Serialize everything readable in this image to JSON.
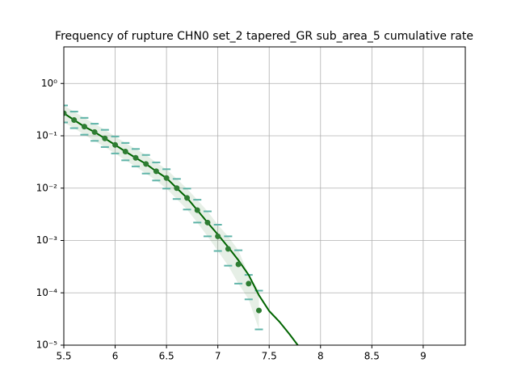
{
  "chart_data": {
    "type": "line",
    "title": "Frequency of rupture CHN0 set_2 tapered_GR sub_area_5 cumulative rate",
    "xlim": [
      5.5,
      9.41
    ],
    "xticks": [
      5.5,
      6.0,
      6.5,
      7.0,
      7.5,
      8.0,
      8.5,
      9.0
    ],
    "ylim": [
      1e-05,
      5
    ],
    "log_y": true,
    "grid": true,
    "yticks": [
      {
        "value": 1e-05,
        "label": "10⁻⁵"
      },
      {
        "value": 0.0001,
        "label": "10⁻⁴"
      },
      {
        "value": 0.001,
        "label": "10⁻³"
      },
      {
        "value": 0.01,
        "label": "10⁻²"
      },
      {
        "value": 0.1,
        "label": "10⁻¹"
      },
      {
        "value": 1,
        "label": "10⁰"
      }
    ],
    "points": {
      "color": "#2e7d32",
      "x": [
        5.5,
        5.6,
        5.7,
        5.8,
        5.9,
        6.0,
        6.1,
        6.2,
        6.3,
        6.4,
        6.5,
        6.6,
        6.7,
        6.8,
        6.9,
        7.0,
        7.1,
        7.2,
        7.3,
        7.4
      ],
      "values": [
        0.27,
        0.2,
        0.15,
        0.118,
        0.089,
        0.067,
        0.05,
        0.038,
        0.029,
        0.021,
        0.0156,
        0.01,
        0.0065,
        0.0038,
        0.0022,
        0.0012,
        0.00069,
        0.00035,
        0.00015,
        4.6e-05
      ],
      "upper": [
        0.38,
        0.29,
        0.22,
        0.17,
        0.13,
        0.097,
        0.073,
        0.056,
        0.043,
        0.031,
        0.023,
        0.015,
        0.0098,
        0.006,
        0.0036,
        0.002,
        0.0012,
        0.00065,
        0.00022,
        0.00011
      ],
      "lower": [
        0.18,
        0.14,
        0.105,
        0.08,
        0.061,
        0.046,
        0.034,
        0.026,
        0.019,
        0.014,
        0.0098,
        0.0062,
        0.0039,
        0.0022,
        0.0012,
        0.00063,
        0.00033,
        0.00015,
        7.5e-05,
        2e-05
      ]
    },
    "line": {
      "color": "#006400",
      "x": [
        5.5,
        5.6,
        5.7,
        5.8,
        5.9,
        6.0,
        6.1,
        6.2,
        6.3,
        6.4,
        6.5,
        6.6,
        6.7,
        6.8,
        6.9,
        7.0,
        7.1,
        7.2,
        7.3,
        7.4,
        7.5,
        7.6,
        7.7,
        7.8
      ],
      "values": [
        0.27,
        0.2,
        0.15,
        0.118,
        0.089,
        0.067,
        0.05,
        0.038,
        0.029,
        0.021,
        0.0156,
        0.01,
        0.0065,
        0.0038,
        0.0022,
        0.0013,
        0.00075,
        0.00042,
        0.00022,
        9e-05,
        4.5e-05,
        2.8e-05,
        1.6e-05,
        8.8e-06
      ]
    }
  }
}
